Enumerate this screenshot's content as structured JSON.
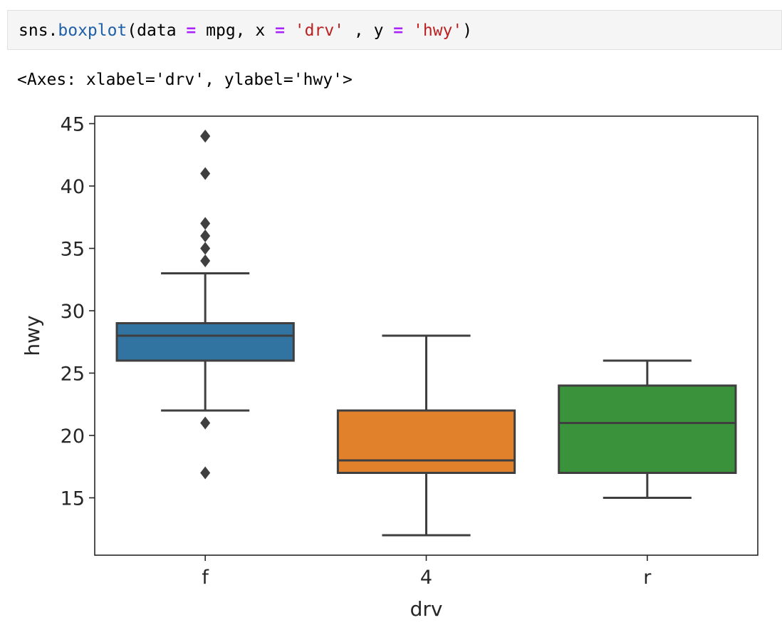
{
  "cell": {
    "code_parts": {
      "p1": "sns.",
      "p2": "boxplot",
      "p3": "(data ",
      "p4": "=",
      "p5": " mpg, x ",
      "p6": "=",
      "p7": " ",
      "p8": "'drv'",
      "p9": " , y ",
      "p10": "=",
      "p11": " ",
      "p12": "'hwy'",
      "p13": ")"
    },
    "output": "<Axes: xlabel='drv', ylabel='hwy'>"
  },
  "colors": {
    "f": "#3274a1",
    "4": "#e1812c",
    "r": "#3a923a",
    "line": "#3f3f3f"
  },
  "chart_data": {
    "type": "box",
    "xlabel": "drv",
    "ylabel": "hwy",
    "ylim": [
      10.4,
      45.6
    ],
    "yticks": [
      15,
      20,
      25,
      30,
      35,
      40,
      45
    ],
    "categories": [
      "f",
      "4",
      "r"
    ],
    "boxes": [
      {
        "category": "f",
        "whisker_low": 22,
        "q1": 26,
        "median": 28,
        "q3": 29,
        "whisker_high": 33,
        "outliers": [
          44,
          44,
          41,
          37,
          36,
          35,
          34,
          21,
          17
        ]
      },
      {
        "category": "4",
        "whisker_low": 12,
        "q1": 17,
        "median": 18,
        "q3": 22,
        "whisker_high": 28,
        "outliers": []
      },
      {
        "category": "r",
        "whisker_low": 15,
        "q1": 17,
        "median": 21,
        "q3": 24,
        "whisker_high": 26,
        "outliers": []
      }
    ]
  }
}
